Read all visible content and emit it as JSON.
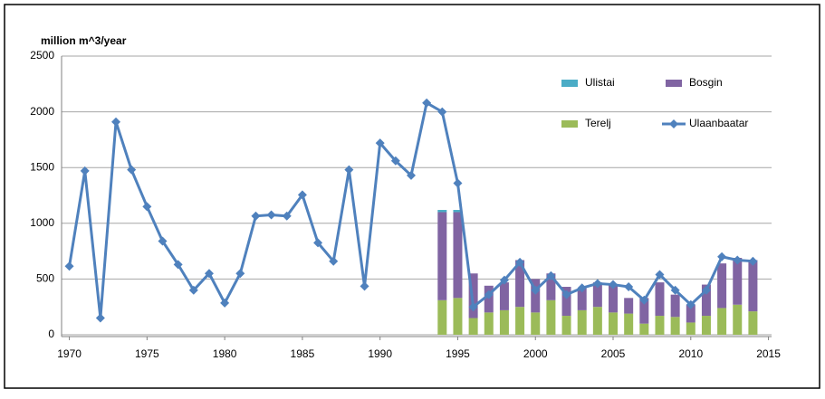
{
  "chart_data": {
    "type": "bar-line",
    "y_label": "million m^3/year",
    "x": [
      1970,
      1971,
      1972,
      1973,
      1974,
      1975,
      1976,
      1977,
      1978,
      1979,
      1980,
      1981,
      1982,
      1983,
      1984,
      1985,
      1986,
      1987,
      1988,
      1989,
      1990,
      1991,
      1992,
      1993,
      1994,
      1995,
      1996,
      1997,
      1998,
      1999,
      2000,
      2001,
      2002,
      2003,
      2004,
      2005,
      2006,
      2007,
      2008,
      2009,
      2010,
      2011,
      2012,
      2013,
      2014
    ],
    "series": [
      {
        "name": "Terelj",
        "type": "bar",
        "color": "#9bbb59",
        "values": [
          null,
          null,
          null,
          null,
          null,
          null,
          null,
          null,
          null,
          null,
          null,
          null,
          null,
          null,
          null,
          null,
          null,
          null,
          null,
          null,
          null,
          null,
          null,
          null,
          310,
          330,
          150,
          200,
          220,
          250,
          200,
          310,
          170,
          220,
          250,
          200,
          190,
          100,
          170,
          160,
          110,
          170,
          240,
          270,
          210
        ]
      },
      {
        "name": "Bosgin",
        "type": "bar",
        "color": "#8064a2",
        "values": [
          null,
          null,
          null,
          null,
          null,
          null,
          null,
          null,
          null,
          null,
          null,
          null,
          null,
          null,
          null,
          null,
          null,
          null,
          null,
          null,
          null,
          null,
          null,
          null,
          790,
          770,
          400,
          240,
          250,
          420,
          300,
          240,
          260,
          200,
          220,
          250,
          140,
          230,
          300,
          200,
          160,
          280,
          400,
          420,
          460
        ]
      },
      {
        "name": "Ulistai",
        "type": "bar",
        "color": "#4bacc6",
        "values": [
          null,
          null,
          null,
          null,
          null,
          null,
          null,
          null,
          null,
          null,
          null,
          null,
          null,
          null,
          null,
          null,
          null,
          null,
          null,
          null,
          null,
          null,
          null,
          null,
          20,
          20,
          null,
          null,
          null,
          null,
          null,
          null,
          null,
          null,
          null,
          null,
          null,
          null,
          null,
          null,
          null,
          null,
          null,
          null,
          null
        ]
      },
      {
        "name": "Ulaanbaatar",
        "type": "line",
        "color": "#4f81bd",
        "values": [
          615,
          1470,
          150,
          1910,
          1480,
          1150,
          840,
          630,
          400,
          550,
          285,
          550,
          1065,
          1075,
          1065,
          1255,
          825,
          660,
          1480,
          435,
          1720,
          1560,
          1430,
          2080,
          2000,
          1360,
          250,
          360,
          490,
          650,
          400,
          530,
          360,
          420,
          460,
          450,
          430,
          310,
          540,
          400,
          270,
          400,
          700,
          670,
          660
        ]
      }
    ],
    "xlim": [
      1969.5,
      2015.2
    ],
    "xticks": [
      1970,
      1975,
      1980,
      1985,
      1990,
      1995,
      2000,
      2005,
      2010,
      2015
    ],
    "ylim": [
      0,
      2500
    ],
    "yticks": [
      0,
      500,
      1000,
      1500,
      2000,
      2500
    ],
    "grid": true
  }
}
